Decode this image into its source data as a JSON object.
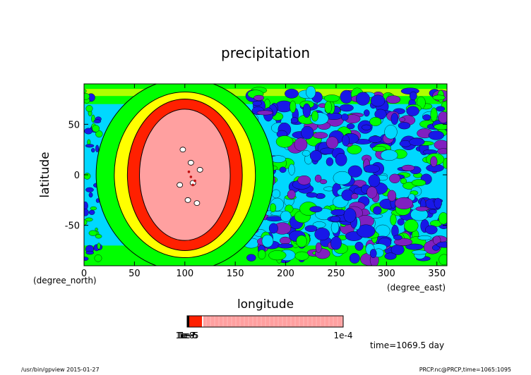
{
  "chart_data": {
    "type": "heatmap",
    "title": "precipitation",
    "xlabel": "longitude",
    "xunit": "(degree_east)",
    "ylabel": "latitude",
    "yunit": "(degree_north)",
    "xlim": [
      0,
      360
    ],
    "ylim": [
      -90,
      90
    ],
    "xticks": [
      0,
      50,
      100,
      150,
      200,
      250,
      300,
      350
    ],
    "yticks": [
      -50,
      0,
      50
    ],
    "colorbar": {
      "max_label": "1e-4",
      "min_labels": [
        "1e-8",
        "1e-7",
        "1e-6",
        "1e-5"
      ],
      "colors": [
        "#000000",
        "#ff2000",
        "#f8f8f8",
        "#ffa0a0"
      ]
    },
    "regions": [
      {
        "name": "pink core",
        "lon_center": 100,
        "lat_center": 0,
        "lon_radius": 45,
        "lat_radius": 65,
        "color": "#ffa0a0"
      },
      {
        "name": "red ring",
        "lon_center": 100,
        "lat_center": 0,
        "lon_radius": 57,
        "lat_radius": 75,
        "color": "#ff2000"
      },
      {
        "name": "yellow ring",
        "lon_center": 100,
        "lat_center": 0,
        "lon_radius": 70,
        "lat_radius": 82,
        "color": "#ffff00"
      },
      {
        "name": "green ring",
        "lon_center": 100,
        "lat_center": 0,
        "lon_radius": 88,
        "lat_radius": 95,
        "color": "#00ff00"
      }
    ],
    "annotation": "time=1069.5 day"
  },
  "footer": {
    "left": "/usr/bin/gpview 2015-01-27",
    "right": "PRCP.nc@PRCP,time=1065:1095"
  },
  "colors": {
    "cyan": "#00d8ff",
    "blue": "#1818e8",
    "purple": "#8020c0",
    "green": "#00ff00",
    "light_green": "#b0ff00"
  }
}
